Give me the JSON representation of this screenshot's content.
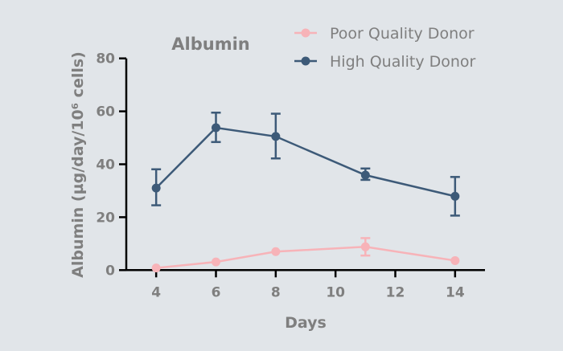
{
  "chart_data": {
    "type": "line",
    "title": "Albumin",
    "xlabel": "Days",
    "ylabel": "Albumin (µg/day/10⁶ cells)",
    "xlim": [
      3,
      15
    ],
    "ylim": [
      0,
      80
    ],
    "xticks": [
      4,
      6,
      8,
      10,
      12,
      14
    ],
    "yticks": [
      0,
      20,
      40,
      60,
      80
    ],
    "legend_position": "top-right",
    "grid": false,
    "series": [
      {
        "name": "Poor Quality Donor",
        "color": "#f7b3b8",
        "x": [
          4,
          6,
          8,
          11,
          14
        ],
        "y": [
          0.8,
          3.1,
          7.0,
          8.8,
          3.6
        ],
        "err_low": [
          0.8,
          3.1,
          7.0,
          5.5,
          3.6
        ],
        "err_high": [
          0.8,
          3.1,
          7.0,
          12.1,
          3.6
        ]
      },
      {
        "name": "High Quality Donor",
        "color": "#3d5a78",
        "x": [
          4,
          6,
          8,
          11,
          14
        ],
        "y": [
          31.0,
          53.8,
          50.5,
          35.9,
          27.9
        ],
        "err_low": [
          24.5,
          48.4,
          42.2,
          34.1,
          20.6
        ],
        "err_high": [
          38.1,
          59.5,
          59.1,
          38.4,
          35.2
        ]
      }
    ]
  }
}
